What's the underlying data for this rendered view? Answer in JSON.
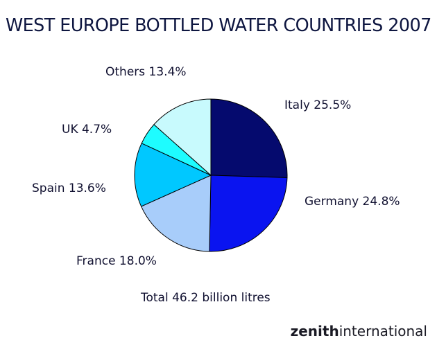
{
  "title": "WEST EUROPE BOTTLED WATER COUNTRIES 2007",
  "total_note": "Total 46.2 billion litres",
  "brand": {
    "bold": "zenith",
    "rest": "international"
  },
  "chart_data": {
    "type": "pie",
    "title": "WEST EUROPE BOTTLED WATER COUNTRIES 2007",
    "slices": [
      {
        "label": "Italy 25.5%",
        "value": 25.5,
        "color": "#050a6e"
      },
      {
        "label": "Germany 24.8%",
        "value": 24.8,
        "color": "#0a14f0"
      },
      {
        "label": "France 18.0%",
        "value": 18.0,
        "color": "#a8cdfa"
      },
      {
        "label": "Spain 13.6%",
        "value": 13.6,
        "color": "#00c8ff"
      },
      {
        "label": "UK 4.7%",
        "value": 4.7,
        "color": "#1efcff"
      },
      {
        "label": "Others 13.4%",
        "value": 13.4,
        "color": "#c8fafd"
      }
    ]
  }
}
